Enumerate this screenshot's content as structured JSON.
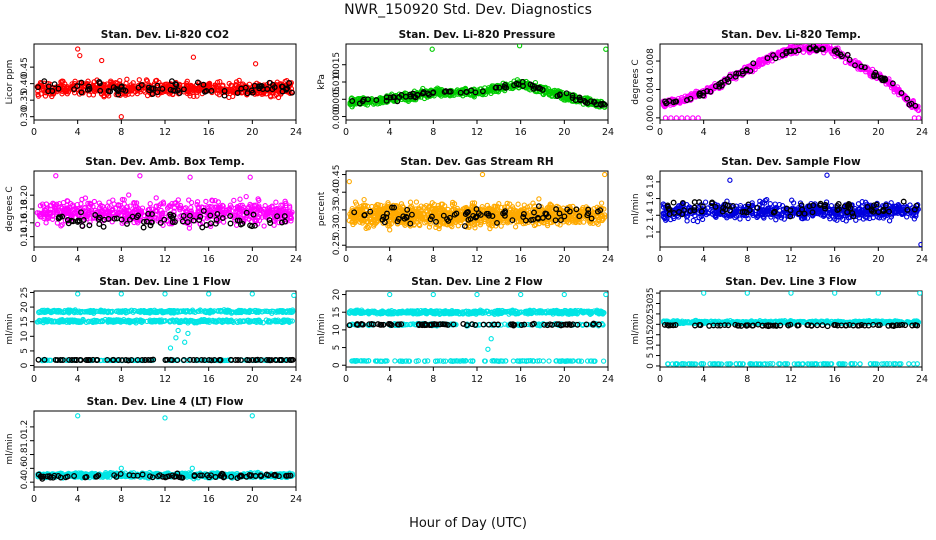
{
  "title": "NWR_150920  Std. Dev. Diagnostics",
  "xlabel_common": "Hour of Day (UTC)",
  "chart_data": [
    {
      "type": "scatter",
      "title": "Stan. Dev. Li-820 CO2",
      "ylabel": "Licor ppm",
      "xlim": [
        0,
        24
      ],
      "ylim": [
        0.29,
        0.52
      ],
      "x_ticks": [
        0,
        4,
        8,
        12,
        16,
        20,
        24
      ],
      "y_ticks": [
        0.3,
        0.35,
        0.4,
        0.45
      ],
      "y_tick_labels": [
        "0.30",
        "0.35",
        "0.40",
        "0.45"
      ],
      "series": [
        {
          "color": "#ff0000",
          "pattern": "band",
          "center": 0.385,
          "spread": 0.035,
          "n": 650,
          "outliers": [
            [
              4.0,
              0.505
            ],
            [
              4.2,
              0.485
            ],
            [
              8.0,
              0.3
            ],
            [
              6.2,
              0.47
            ],
            [
              14.6,
              0.48
            ],
            [
              20.3,
              0.46
            ]
          ]
        },
        {
          "color": "#000000",
          "pattern": "band",
          "center": 0.385,
          "spread": 0.03,
          "n": 80
        }
      ]
    },
    {
      "type": "scatter",
      "title": "Stan. Dev. Li-820 Pressure",
      "ylabel": "kPa",
      "xlim": [
        0,
        24
      ],
      "ylim": [
        -0.001,
        0.021
      ],
      "x_ticks": [
        0,
        4,
        8,
        12,
        16,
        20,
        24
      ],
      "y_ticks": [
        0.0,
        0.005,
        0.01,
        0.015
      ],
      "y_tick_labels": [
        "0.000",
        "0.005",
        "0.010",
        "0.015"
      ],
      "series": [
        {
          "color": "#00cc00",
          "pattern": "curve",
          "curve": [
            [
              0,
              0.004
            ],
            [
              4,
              0.005
            ],
            [
              8,
              0.007
            ],
            [
              12,
              0.007
            ],
            [
              16,
              0.0095
            ],
            [
              20,
              0.006
            ],
            [
              24,
              0.003
            ]
          ],
          "spread": 0.0018,
          "n": 750,
          "outliers": [
            [
              7.9,
              0.0195
            ],
            [
              15.9,
              0.0205
            ],
            [
              23.8,
              0.0195
            ]
          ]
        },
        {
          "color": "#000000",
          "pattern": "curve",
          "curve": [
            [
              0,
              0.004
            ],
            [
              4,
              0.005
            ],
            [
              8,
              0.007
            ],
            [
              12,
              0.007
            ],
            [
              16,
              0.0095
            ],
            [
              20,
              0.006
            ],
            [
              24,
              0.003
            ]
          ],
          "spread": 0.0012,
          "n": 80
        }
      ]
    },
    {
      "type": "scatter",
      "title": "Stan. Dev. Li-820 Temp.",
      "ylabel": "degrees C",
      "xlim": [
        0,
        24
      ],
      "ylim": [
        -0.0003,
        0.0104
      ],
      "x_ticks": [
        0,
        4,
        8,
        12,
        16,
        20,
        24
      ],
      "y_ticks": [
        0.0,
        0.004,
        0.008
      ],
      "y_tick_labels": [
        "0.000",
        "0.004",
        "0.008"
      ],
      "series": [
        {
          "color": "#ff00ff",
          "pattern": "curve",
          "curve": [
            [
              0,
              0.002
            ],
            [
              2,
              0.0025
            ],
            [
              4,
              0.0035
            ],
            [
              7,
              0.006
            ],
            [
              10,
              0.0085
            ],
            [
              13,
              0.0098
            ],
            [
              15.5,
              0.0098
            ],
            [
              18,
              0.0075
            ],
            [
              21,
              0.005
            ],
            [
              23,
              0.002
            ],
            [
              24,
              0.001
            ]
          ],
          "spread": 0.0009,
          "n": 550,
          "outliers": [
            [
              0.5,
              0.0
            ],
            [
              1.0,
              0.0
            ],
            [
              1.5,
              0.0
            ],
            [
              2.0,
              0.0
            ],
            [
              2.5,
              0.0
            ],
            [
              3.0,
              0.0
            ],
            [
              3.5,
              0.0
            ],
            [
              23.3,
              0.0
            ],
            [
              23.7,
              0.0
            ]
          ]
        },
        {
          "color": "#000000",
          "pattern": "curve",
          "curve": [
            [
              0,
              0.002
            ],
            [
              2,
              0.0025
            ],
            [
              4,
              0.0035
            ],
            [
              7,
              0.006
            ],
            [
              10,
              0.0085
            ],
            [
              13,
              0.0098
            ],
            [
              15.5,
              0.0098
            ],
            [
              18,
              0.0075
            ],
            [
              21,
              0.005
            ],
            [
              23,
              0.002
            ],
            [
              24,
              0.001
            ]
          ],
          "spread": 0.0007,
          "n": 80
        }
      ]
    },
    {
      "type": "scatter",
      "title": "Stan. Dev. Amb. Box Temp.",
      "ylabel": "degrees C",
      "xlim": [
        0,
        24
      ],
      "ylim": [
        0.125,
        0.235
      ],
      "x_ticks": [
        0,
        4,
        8,
        12,
        16,
        20,
        24
      ],
      "y_ticks": [
        0.14,
        0.16,
        0.18,
        0.2
      ],
      "y_tick_labels": [
        "0.14",
        "0.16",
        "0.18",
        "0.20"
      ],
      "series": [
        {
          "color": "#ff00ff",
          "pattern": "band",
          "center": 0.175,
          "spread": 0.028,
          "n": 650,
          "outliers": [
            [
              2.0,
              0.228
            ],
            [
              9.7,
              0.228
            ],
            [
              14.3,
              0.226
            ],
            [
              19.8,
              0.226
            ]
          ]
        },
        {
          "color": "#000000",
          "pattern": "band",
          "center": 0.165,
          "spread": 0.018,
          "n": 80
        }
      ]
    },
    {
      "type": "scatter",
      "title": "Stan. Dev. Gas Stream RH",
      "ylabel": "percent",
      "xlim": [
        0,
        24
      ],
      "ylim": [
        0.245,
        0.46
      ],
      "x_ticks": [
        0,
        4,
        8,
        12,
        16,
        20,
        24
      ],
      "y_ticks": [
        0.25,
        0.3,
        0.35,
        0.4,
        0.45
      ],
      "y_tick_labels": [
        "0.25",
        "0.30",
        "0.35",
        "0.40",
        "0.45"
      ],
      "series": [
        {
          "color": "#ffaa00",
          "pattern": "band",
          "center": 0.335,
          "spread": 0.05,
          "n": 1100,
          "outliers": [
            [
              12.5,
              0.45
            ],
            [
              23.7,
              0.45
            ],
            [
              0.3,
              0.43
            ]
          ]
        },
        {
          "color": "#000000",
          "pattern": "band",
          "center": 0.335,
          "spread": 0.045,
          "n": 80
        }
      ]
    },
    {
      "type": "scatter",
      "title": "Stan. Dev. Sample Flow",
      "ylabel": "ml/min",
      "xlim": [
        0,
        24
      ],
      "ylim": [
        1.02,
        1.93
      ],
      "x_ticks": [
        0,
        4,
        8,
        12,
        16,
        20,
        24
      ],
      "y_ticks": [
        1.2,
        1.4,
        1.6,
        1.8
      ],
      "y_tick_labels": [
        "1.2",
        "1.4",
        "1.6",
        "1.8"
      ],
      "series": [
        {
          "color": "#0000dd",
          "pattern": "band",
          "center": 1.45,
          "spread": 0.16,
          "n": 650,
          "outliers": [
            [
              23.9,
              1.05
            ],
            [
              15.3,
              1.88
            ],
            [
              6.4,
              1.82
            ]
          ]
        },
        {
          "color": "#000000",
          "pattern": "band",
          "center": 1.48,
          "spread": 0.14,
          "n": 80
        }
      ]
    },
    {
      "type": "scatter",
      "title": "Stan. Dev. Line 1 Flow",
      "ylabel": "ml/min",
      "xlim": [
        0,
        24
      ],
      "ylim": [
        -0.5,
        25.5
      ],
      "x_ticks": [
        0,
        4,
        8,
        12,
        16,
        20,
        24
      ],
      "y_ticks": [
        0,
        5,
        10,
        15,
        20,
        25
      ],
      "y_tick_labels": [
        "0",
        "5",
        "10",
        "15",
        "20",
        "25"
      ],
      "series": [
        {
          "color": "#00e5e5",
          "pattern": "band",
          "center": 18.5,
          "spread": 0.8,
          "n": 330
        },
        {
          "color": "#00e5e5",
          "pattern": "band",
          "center": 15.2,
          "spread": 0.8,
          "n": 330,
          "outliers": [
            [
              4.0,
              24.5
            ],
            [
              8.0,
              24.5
            ],
            [
              12.0,
              24.5
            ],
            [
              16.0,
              24.5
            ],
            [
              20.0,
              24.5
            ],
            [
              23.8,
              24.0
            ],
            [
              12.5,
              6.0
            ],
            [
              13.0,
              9.5
            ],
            [
              13.2,
              12.0
            ],
            [
              13.8,
              8.0
            ],
            [
              14.1,
              11.0
            ]
          ]
        },
        {
          "color": "#00e5e5",
          "pattern": "band",
          "center": 1.8,
          "spread": 0.15,
          "n": 120
        },
        {
          "color": "#000000",
          "pattern": "band",
          "center": 1.9,
          "spread": 0.15,
          "n": 80
        }
      ]
    },
    {
      "type": "scatter",
      "title": "Stan. Dev. Line 2 Flow",
      "ylabel": "ml/min",
      "xlim": [
        0,
        24
      ],
      "ylim": [
        -0.5,
        21
      ],
      "x_ticks": [
        0,
        4,
        8,
        12,
        16,
        20,
        24
      ],
      "y_ticks": [
        0,
        5,
        10,
        15,
        20
      ],
      "y_tick_labels": [
        "0",
        "5",
        "10",
        "15",
        "20"
      ],
      "series": [
        {
          "color": "#00e5e5",
          "pattern": "band",
          "center": 15.0,
          "spread": 0.9,
          "n": 500,
          "outliers": [
            [
              4.0,
              20.0
            ],
            [
              8.0,
              20.0
            ],
            [
              12.0,
              20.0
            ],
            [
              16.0,
              20.0
            ],
            [
              20.0,
              20.0
            ],
            [
              23.8,
              20.0
            ],
            [
              13.0,
              4.5
            ],
            [
              13.3,
              7.5
            ]
          ]
        },
        {
          "color": "#00e5e5",
          "pattern": "band",
          "center": 11.5,
          "spread": 0.5,
          "n": 150
        },
        {
          "color": "#00e5e5",
          "pattern": "band",
          "center": 1.2,
          "spread": 0.15,
          "n": 120
        },
        {
          "color": "#000000",
          "pattern": "band",
          "center": 11.5,
          "spread": 0.4,
          "n": 80
        }
      ]
    },
    {
      "type": "scatter",
      "title": "Stan. Dev. Line 3 Flow",
      "ylabel": "ml/min",
      "xlim": [
        0,
        24
      ],
      "ylim": [
        -0.5,
        36
      ],
      "x_ticks": [
        0,
        4,
        8,
        12,
        16,
        20,
        24
      ],
      "y_ticks": [
        0,
        5,
        10,
        15,
        20,
        25,
        30,
        35
      ],
      "y_tick_labels": [
        "0",
        "5",
        "10",
        "15",
        "20",
        "25",
        "30",
        "35"
      ],
      "series": [
        {
          "color": "#00e5e5",
          "pattern": "band",
          "center": 21.0,
          "spread": 1.1,
          "n": 500,
          "outliers": [
            [
              4.0,
              35.0
            ],
            [
              8.0,
              35.0
            ],
            [
              12.0,
              35.0
            ],
            [
              16.0,
              35.0
            ],
            [
              20.0,
              35.0
            ],
            [
              23.8,
              35.0
            ]
          ]
        },
        {
          "color": "#00e5e5",
          "pattern": "band",
          "center": 1.0,
          "spread": 0.15,
          "n": 120
        },
        {
          "color": "#000000",
          "pattern": "band",
          "center": 19.5,
          "spread": 0.6,
          "n": 80
        }
      ]
    },
    {
      "type": "scatter",
      "title": "Stan. Dev. Line 4 (LT) Flow",
      "ylabel": "ml/min",
      "xlim": [
        0,
        24
      ],
      "ylim": [
        0.33,
        1.43
      ],
      "x_ticks": [
        0,
        4,
        8,
        12,
        16,
        20,
        24
      ],
      "y_ticks": [
        0.4,
        0.6,
        0.8,
        1.0,
        1.2
      ],
      "y_tick_labels": [
        "0.4",
        "0.6",
        "0.8",
        "1.0",
        "1.2"
      ],
      "series": [
        {
          "color": "#00e5e5",
          "pattern": "band",
          "center": 0.5,
          "spread": 0.055,
          "n": 650,
          "outliers": [
            [
              4.0,
              1.36
            ],
            [
              12.0,
              1.33
            ],
            [
              20.0,
              1.36
            ],
            [
              8.0,
              0.6
            ],
            [
              14.5,
              0.6
            ]
          ]
        },
        {
          "color": "#000000",
          "pattern": "band",
          "center": 0.49,
          "spread": 0.05,
          "n": 80
        }
      ]
    }
  ]
}
